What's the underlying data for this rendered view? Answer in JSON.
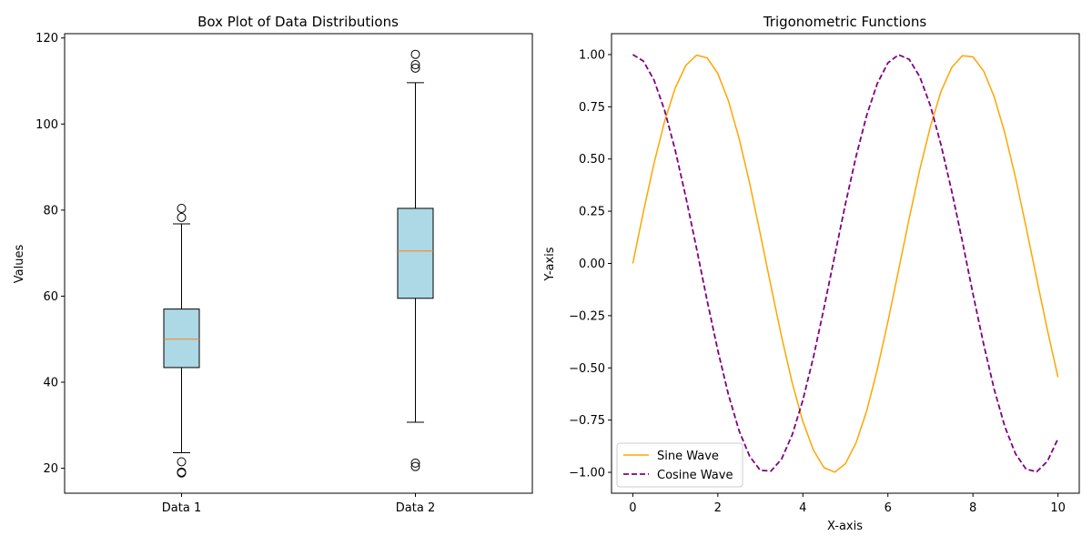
{
  "chart_data": [
    {
      "type": "box",
      "title": "Box Plot of Data Distributions",
      "xlabel": "",
      "ylabel": "Values",
      "categories": [
        "Data 1",
        "Data 2"
      ],
      "ylim": [
        14.2,
        121.0
      ],
      "yticks": [
        20,
        40,
        60,
        80,
        100,
        120
      ],
      "box_color": "#add8e6",
      "median_color": "#ff7f0e",
      "boxes": [
        {
          "name": "Data 1",
          "whisker_low": 23.6,
          "q1": 43.4,
          "median": 50.0,
          "q3": 57.0,
          "whisker_high": 76.8,
          "outliers": [
            80.4,
            78.3,
            21.5,
            19.1,
            18.9
          ]
        },
        {
          "name": "Data 2",
          "whisker_low": 30.7,
          "q1": 59.5,
          "median": 70.5,
          "q3": 80.4,
          "whisker_high": 109.6,
          "outliers": [
            116.2,
            113.8,
            113.0,
            21.2,
            20.4
          ]
        }
      ]
    },
    {
      "type": "line",
      "title": "Trigonometric Functions",
      "xlabel": "X-axis",
      "ylabel": "Y-axis",
      "xlim": [
        -0.5,
        10.5
      ],
      "ylim": [
        -1.1,
        1.1
      ],
      "xticks": [
        0,
        2,
        4,
        6,
        8,
        10
      ],
      "yticks": [
        1.0,
        0.75,
        0.5,
        0.25,
        0.0,
        -0.25,
        -0.5,
        -0.75,
        -1.0
      ],
      "ytick_labels": [
        "1.00",
        "0.75",
        "0.50",
        "0.25",
        "0.00",
        "−0.25",
        "−0.50",
        "−0.75",
        "−1.00"
      ],
      "legend_position": "lower-left",
      "series": [
        {
          "name": "Sine Wave",
          "color": "#ffa500",
          "style": "solid",
          "x": [
            0,
            0.25,
            0.5,
            0.75,
            1,
            1.25,
            1.5,
            1.75,
            2,
            2.25,
            2.5,
            2.75,
            3,
            3.25,
            3.5,
            3.75,
            4,
            4.25,
            4.5,
            4.75,
            5,
            5.25,
            5.5,
            5.75,
            6,
            6.25,
            6.5,
            6.75,
            7,
            7.25,
            7.5,
            7.75,
            8,
            8.25,
            8.5,
            8.75,
            9,
            9.25,
            9.5,
            9.75,
            10
          ],
          "y": [
            0.0,
            0.247,
            0.479,
            0.682,
            0.841,
            0.949,
            0.997,
            0.984,
            0.909,
            0.778,
            0.598,
            0.382,
            0.141,
            -0.108,
            -0.351,
            -0.572,
            -0.757,
            -0.895,
            -0.978,
            -0.999,
            -0.959,
            -0.859,
            -0.706,
            -0.509,
            -0.279,
            -0.033,
            0.215,
            0.45,
            0.657,
            0.824,
            0.938,
            0.994,
            0.989,
            0.922,
            0.798,
            0.625,
            0.412,
            0.174,
            -0.075,
            -0.319,
            -0.544
          ]
        },
        {
          "name": "Cosine Wave",
          "color": "#800080",
          "style": "dashed",
          "x": [
            0,
            0.25,
            0.5,
            0.75,
            1,
            1.25,
            1.5,
            1.75,
            2,
            2.25,
            2.5,
            2.75,
            3,
            3.25,
            3.5,
            3.75,
            4,
            4.25,
            4.5,
            4.75,
            5,
            5.25,
            5.5,
            5.75,
            6,
            6.25,
            6.5,
            6.75,
            7,
            7.25,
            7.5,
            7.75,
            8,
            8.25,
            8.5,
            8.75,
            9,
            9.25,
            9.5,
            9.75,
            10
          ],
          "y": [
            1.0,
            0.969,
            0.878,
            0.732,
            0.54,
            0.315,
            0.071,
            -0.178,
            -0.416,
            -0.628,
            -0.801,
            -0.924,
            -0.99,
            -0.994,
            -0.936,
            -0.82,
            -0.654,
            -0.446,
            -0.211,
            0.038,
            0.284,
            0.512,
            0.709,
            0.861,
            0.96,
            0.999,
            0.977,
            0.893,
            0.754,
            0.567,
            0.347,
            0.107,
            -0.146,
            -0.386,
            -0.602,
            -0.781,
            -0.911,
            -0.985,
            -0.997,
            -0.947,
            -0.839
          ]
        }
      ]
    }
  ]
}
